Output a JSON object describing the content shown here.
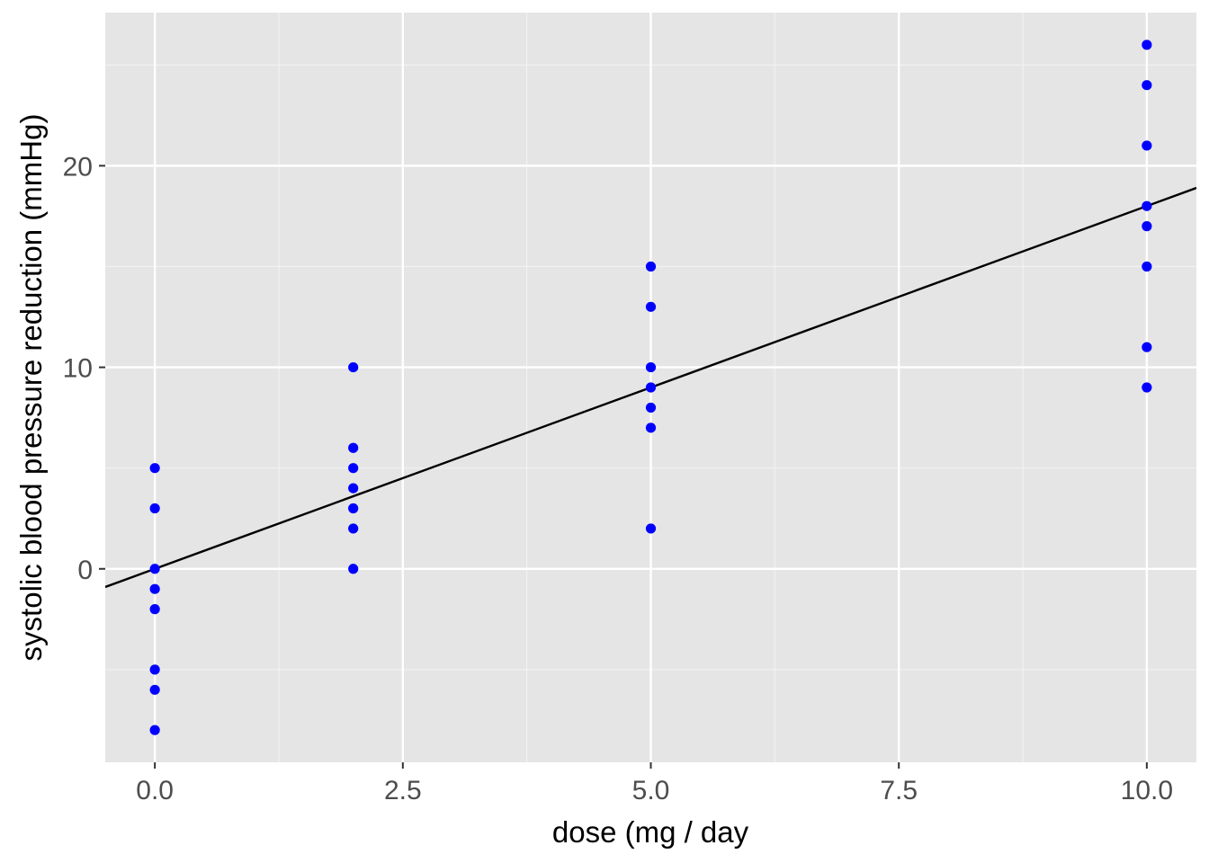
{
  "chart_data": {
    "type": "scatter",
    "title": "",
    "xlabel": "dose (mg / day",
    "ylabel": "systolic blood pressure reduction (mmHg)",
    "xlim": [
      -0.5,
      10.5
    ],
    "ylim": [
      -9.6,
      27.6
    ],
    "x_ticks": [
      0.0,
      2.5,
      5.0,
      7.5,
      10.0
    ],
    "x_tick_labels": [
      "0.0",
      "2.5",
      "5.0",
      "7.5",
      "10.0"
    ],
    "y_ticks": [
      0,
      10,
      20
    ],
    "y_tick_labels": [
      "0",
      "10",
      "20"
    ],
    "grid": true,
    "background": "#e5e5e5",
    "point_color": "#0000ff",
    "line_color": "#000000",
    "series": [
      {
        "kind": "points",
        "points": [
          {
            "x": 0,
            "y": 5
          },
          {
            "x": 0,
            "y": 3
          },
          {
            "x": 0,
            "y": 0
          },
          {
            "x": 0,
            "y": -1
          },
          {
            "x": 0,
            "y": -2
          },
          {
            "x": 0,
            "y": -5
          },
          {
            "x": 0,
            "y": -6
          },
          {
            "x": 0,
            "y": -8
          },
          {
            "x": 2,
            "y": 10
          },
          {
            "x": 2,
            "y": 6
          },
          {
            "x": 2,
            "y": 5
          },
          {
            "x": 2,
            "y": 4
          },
          {
            "x": 2,
            "y": 3
          },
          {
            "x": 2,
            "y": 2
          },
          {
            "x": 2,
            "y": 0
          },
          {
            "x": 5,
            "y": 15
          },
          {
            "x": 5,
            "y": 13
          },
          {
            "x": 5,
            "y": 10
          },
          {
            "x": 5,
            "y": 9
          },
          {
            "x": 5,
            "y": 8
          },
          {
            "x": 5,
            "y": 7
          },
          {
            "x": 5,
            "y": 2
          },
          {
            "x": 10,
            "y": 26
          },
          {
            "x": 10,
            "y": 24
          },
          {
            "x": 10,
            "y": 21
          },
          {
            "x": 10,
            "y": 18
          },
          {
            "x": 10,
            "y": 17
          },
          {
            "x": 10,
            "y": 15
          },
          {
            "x": 10,
            "y": 11
          },
          {
            "x": 10,
            "y": 9
          }
        ]
      },
      {
        "kind": "line",
        "intercept": 0,
        "slope": 1.8
      }
    ]
  }
}
